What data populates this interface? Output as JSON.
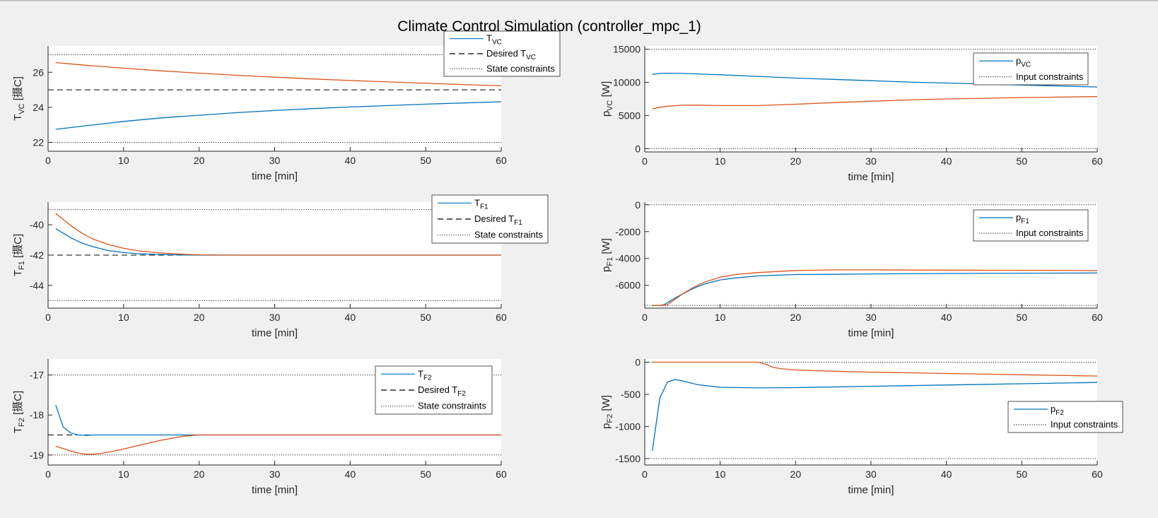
{
  "figure": {
    "title": "Climate Control Simulation (controller_mpc_1)"
  },
  "style": {
    "series1_color": "#0072BD",
    "series2_color": "#D95319",
    "desired_color": "#000000",
    "constraint_color": "#000000",
    "axes_background": "#ffffff",
    "figure_background": "#f0f0f0"
  },
  "chart_data": [
    {
      "type": "line",
      "id": "T_VC",
      "ylabel": "T_VC [摄C]",
      "ylabel_main": "T",
      "ylabel_sub": "VC",
      "ylabel_unit": "[摄C]",
      "xlabel": "time [min]",
      "xlim": [
        0,
        60
      ],
      "ylim": [
        21.5,
        27.5
      ],
      "xticks": [
        0,
        10,
        20,
        30,
        40,
        50,
        60
      ],
      "yticks": [
        22,
        24,
        26
      ],
      "legend_position": "top-right-outside",
      "legend": [
        {
          "style": "solid",
          "main": "T",
          "sub": "VC",
          "pre": ""
        },
        {
          "style": "dashed",
          "main": "T",
          "sub": "VC",
          "pre": "Desired "
        },
        {
          "style": "dotted",
          "main": "State constraints",
          "sub": "",
          "pre": ""
        }
      ],
      "series": [
        {
          "x": [
            1,
            5,
            10,
            15,
            20,
            25,
            30,
            35,
            40,
            45,
            50,
            55,
            60
          ],
          "values": [
            22.75,
            22.95,
            23.2,
            23.4,
            23.55,
            23.7,
            23.82,
            23.93,
            24.02,
            24.1,
            24.18,
            24.25,
            24.32
          ]
        },
        {
          "x": [
            1,
            5,
            10,
            15,
            20,
            25,
            30,
            35,
            40,
            45,
            50,
            55,
            60
          ],
          "values": [
            26.55,
            26.4,
            26.23,
            26.08,
            25.95,
            25.83,
            25.72,
            25.62,
            25.53,
            25.45,
            25.37,
            25.3,
            25.23
          ]
        }
      ],
      "desired": [
        25
      ],
      "constraints": [
        22,
        27
      ]
    },
    {
      "type": "line",
      "id": "p_VC",
      "ylabel": "p_VC [W]",
      "ylabel_main": "p",
      "ylabel_sub": "VC",
      "ylabel_unit": "[W]",
      "xlabel": "time [min]",
      "xlim": [
        0,
        60
      ],
      "ylim": [
        -500,
        15500
      ],
      "xticks": [
        0,
        10,
        20,
        30,
        40,
        50,
        60
      ],
      "yticks": [
        0,
        5000,
        10000,
        15000
      ],
      "legend_position": "top-right",
      "legend": [
        {
          "style": "solid",
          "main": "p",
          "sub": "VC",
          "pre": ""
        },
        {
          "style": "dotted",
          "main": "Input constraints",
          "sub": "",
          "pre": ""
        }
      ],
      "series": [
        {
          "x": [
            1,
            2,
            3,
            5,
            10,
            15,
            20,
            25,
            30,
            35,
            40,
            45,
            50,
            55,
            60
          ],
          "values": [
            11200,
            11350,
            11380,
            11350,
            11150,
            10900,
            10650,
            10450,
            10250,
            10050,
            9900,
            9750,
            9600,
            9450,
            9300
          ]
        },
        {
          "x": [
            1,
            2,
            3,
            5,
            7,
            10,
            15,
            20,
            25,
            30,
            35,
            40,
            45,
            50,
            55,
            60
          ],
          "values": [
            6000,
            6250,
            6400,
            6550,
            6560,
            6500,
            6500,
            6700,
            6950,
            7150,
            7350,
            7500,
            7600,
            7700,
            7780,
            7850
          ]
        }
      ],
      "desired": [],
      "constraints": [
        0,
        15000
      ]
    },
    {
      "type": "line",
      "id": "T_F1",
      "ylabel": "T_F1 [摄C]",
      "ylabel_main": "T",
      "ylabel_sub": "F1",
      "ylabel_unit": "[摄C]",
      "xlabel": "time [min]",
      "xlim": [
        0,
        60
      ],
      "ylim": [
        -45.5,
        -38.5
      ],
      "xticks": [
        0,
        10,
        20,
        30,
        40,
        50,
        60
      ],
      "yticks": [
        -44,
        -42,
        -40
      ],
      "legend_position": "top-right-outside",
      "legend": [
        {
          "style": "solid",
          "main": "T",
          "sub": "F1",
          "pre": ""
        },
        {
          "style": "dashed",
          "main": "T",
          "sub": "F1",
          "pre": "Desired "
        },
        {
          "style": "dotted",
          "main": "State constraints",
          "sub": "",
          "pre": ""
        }
      ],
      "series": [
        {
          "x": [
            1,
            2,
            3,
            4,
            5,
            6,
            8,
            10,
            12,
            15,
            18,
            20,
            25,
            30,
            40,
            50,
            60
          ],
          "values": [
            -40.25,
            -40.55,
            -40.85,
            -41.1,
            -41.3,
            -41.45,
            -41.7,
            -41.83,
            -41.91,
            -41.96,
            -41.99,
            -42.0,
            -42.0,
            -42.0,
            -42.0,
            -42.0,
            -42.0
          ]
        },
        {
          "x": [
            1,
            2,
            3,
            4,
            5,
            6,
            8,
            10,
            12,
            15,
            18,
            20,
            25,
            30,
            40,
            50,
            60
          ],
          "values": [
            -39.25,
            -39.65,
            -40.05,
            -40.4,
            -40.7,
            -40.95,
            -41.3,
            -41.55,
            -41.72,
            -41.86,
            -41.95,
            -41.98,
            -42.0,
            -42.0,
            -42.0,
            -42.0,
            -42.0
          ]
        }
      ],
      "desired": [
        -42
      ],
      "constraints": [
        -39,
        -45
      ]
    },
    {
      "type": "line",
      "id": "p_F1",
      "ylabel": "p_F1 [W]",
      "ylabel_main": "p",
      "ylabel_sub": "F1",
      "ylabel_unit": "[W]",
      "xlabel": "time [min]",
      "xlim": [
        0,
        60
      ],
      "ylim": [
        -7700,
        200
      ],
      "xticks": [
        0,
        10,
        20,
        30,
        40,
        50,
        60
      ],
      "yticks": [
        -6000,
        -4000,
        -2000,
        0
      ],
      "legend_position": "top-right",
      "legend": [
        {
          "style": "solid",
          "main": "p",
          "sub": "F1",
          "pre": ""
        },
        {
          "style": "dotted",
          "main": "Input constraints",
          "sub": "",
          "pre": ""
        }
      ],
      "series": [
        {
          "x": [
            1,
            2,
            2.5,
            3,
            4,
            5,
            6,
            7,
            8,
            10,
            12,
            15,
            20,
            25,
            30,
            40,
            50,
            60
          ],
          "values": [
            -7500,
            -7500,
            -7450,
            -7300,
            -6950,
            -6650,
            -6350,
            -6100,
            -5900,
            -5600,
            -5450,
            -5300,
            -5200,
            -5180,
            -5150,
            -5120,
            -5100,
            -5080
          ]
        },
        {
          "x": [
            1,
            2,
            3,
            4,
            5,
            6,
            7,
            8,
            10,
            12,
            15,
            20,
            25,
            30,
            40,
            50,
            60
          ],
          "values": [
            -7500,
            -7500,
            -7450,
            -7050,
            -6650,
            -6300,
            -6000,
            -5750,
            -5400,
            -5200,
            -5050,
            -4900,
            -4850,
            -4850,
            -4870,
            -4880,
            -4900
          ]
        }
      ],
      "desired": [],
      "constraints": [
        0,
        -7500
      ]
    },
    {
      "type": "line",
      "id": "T_F2",
      "ylabel": "T_F2 [摄C]",
      "ylabel_main": "T",
      "ylabel_sub": "F2",
      "ylabel_unit": "[摄C]",
      "xlabel": "time [min]",
      "xlim": [
        0,
        60
      ],
      "ylim": [
        -19.25,
        -16.6
      ],
      "xticks": [
        0,
        10,
        20,
        30,
        40,
        50,
        60
      ],
      "yticks": [
        -19,
        -18,
        -17
      ],
      "legend_position": "top-right",
      "legend": [
        {
          "style": "solid",
          "main": "T",
          "sub": "F2",
          "pre": ""
        },
        {
          "style": "dashed",
          "main": "T",
          "sub": "F2",
          "pre": "Desired "
        },
        {
          "style": "dotted",
          "main": "State constraints",
          "sub": "",
          "pre": ""
        }
      ],
      "series": [
        {
          "x": [
            1,
            2,
            3,
            4,
            5,
            6,
            8,
            10,
            15,
            20,
            30,
            40,
            50,
            60
          ],
          "values": [
            -17.75,
            -18.3,
            -18.45,
            -18.5,
            -18.51,
            -18.5,
            -18.5,
            -18.5,
            -18.5,
            -18.5,
            -18.5,
            -18.5,
            -18.5,
            -18.5
          ]
        },
        {
          "x": [
            1,
            2,
            3,
            4,
            5,
            6,
            7,
            8,
            10,
            12,
            15,
            18,
            20,
            30,
            40,
            50,
            60
          ],
          "values": [
            -18.78,
            -18.84,
            -18.9,
            -18.95,
            -18.98,
            -18.98,
            -18.96,
            -18.93,
            -18.85,
            -18.76,
            -18.63,
            -18.53,
            -18.5,
            -18.5,
            -18.5,
            -18.5,
            -18.5
          ]
        }
      ],
      "desired": [
        -18.5
      ],
      "constraints": [
        -17,
        -19
      ]
    },
    {
      "type": "line",
      "id": "p_F2",
      "ylabel": "p_F2 [W]",
      "ylabel_main": "p",
      "ylabel_sub": "F2",
      "ylabel_unit": "[W]",
      "xlabel": "time [min]",
      "xlim": [
        0,
        60
      ],
      "ylim": [
        -1600,
        50
      ],
      "xticks": [
        0,
        10,
        20,
        30,
        40,
        50,
        60
      ],
      "yticks": [
        -1500,
        -1000,
        -500,
        0
      ],
      "legend_position": "bottom-right",
      "legend": [
        {
          "style": "solid",
          "main": "p",
          "sub": "F2",
          "pre": ""
        },
        {
          "style": "dotted",
          "main": "Input constraints",
          "sub": "",
          "pre": ""
        }
      ],
      "series": [
        {
          "x": [
            1,
            2,
            3,
            4,
            5,
            7,
            10,
            15,
            20,
            30,
            40,
            50,
            60
          ],
          "values": [
            -1380,
            -560,
            -310,
            -270,
            -290,
            -350,
            -390,
            -400,
            -395,
            -375,
            -355,
            -335,
            -315
          ]
        },
        {
          "x": [
            1,
            5,
            10,
            15,
            16,
            17,
            18,
            20,
            25,
            30,
            40,
            50,
            60
          ],
          "values": [
            0,
            0,
            0,
            0,
            -30,
            -80,
            -100,
            -120,
            -140,
            -155,
            -175,
            -195,
            -215
          ]
        }
      ],
      "desired": [],
      "constraints": [
        0,
        -1500
      ]
    }
  ]
}
